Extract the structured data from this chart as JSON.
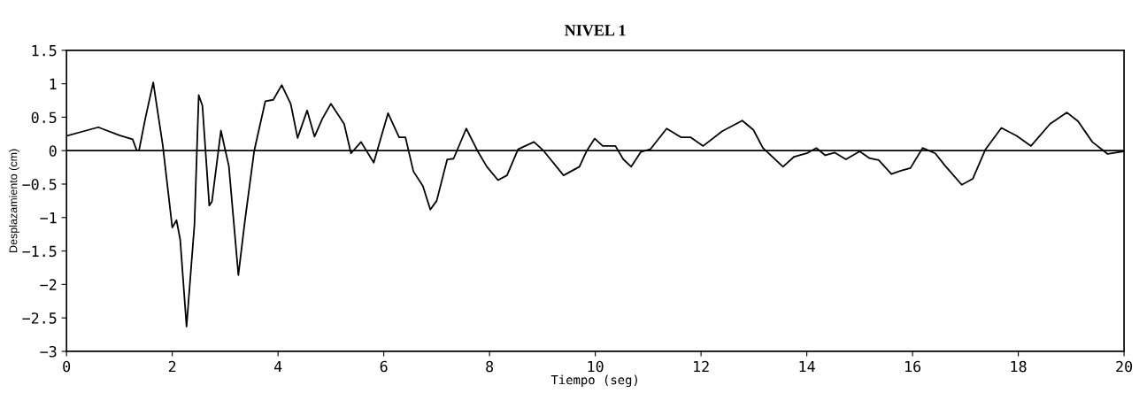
{
  "chart_data": {
    "type": "line",
    "title": "NIVEL 1",
    "xlabel": "Tiempo (seg)",
    "ylabel": "Desplazamiento (cm)",
    "x": [
      0,
      0.6,
      1.0,
      1.25,
      1.33,
      1.37,
      1.49,
      1.64,
      1.82,
      2.0,
      2.08,
      2.15,
      2.27,
      2.42,
      2.5,
      2.57,
      2.7,
      2.75,
      2.92,
      3.07,
      3.25,
      3.37,
      3.55,
      3.76,
      3.91,
      4.07,
      4.24,
      4.37,
      4.55,
      4.69,
      4.84,
      5.0,
      5.16,
      5.25,
      5.38,
      5.57,
      5.81,
      6.08,
      6.29,
      6.41,
      6.56,
      6.74,
      6.88,
      7.0,
      7.2,
      7.32,
      7.56,
      7.77,
      7.95,
      8.16,
      8.33,
      8.54,
      8.84,
      9.02,
      9.4,
      9.7,
      9.84,
      9.99,
      10.14,
      10.38,
      10.53,
      10.68,
      10.86,
      11.04,
      11.35,
      11.62,
      11.8,
      12.04,
      12.4,
      12.78,
      12.99,
      13.17,
      13.55,
      13.76,
      14.0,
      14.18,
      14.35,
      14.53,
      14.74,
      15.0,
      15.18,
      15.36,
      15.6,
      15.78,
      15.96,
      16.19,
      16.43,
      16.61,
      16.93,
      17.14,
      17.38,
      17.68,
      17.97,
      18.24,
      18.6,
      18.92,
      19.13,
      19.4,
      19.69,
      20.0
    ],
    "series": [
      {
        "color": "#000000",
        "values": [
          0.22,
          0.35,
          0.23,
          0.17,
          0.0,
          0.0,
          0.48,
          1.02,
          0.08,
          -1.15,
          -1.04,
          -1.33,
          -2.63,
          -1.1,
          0.83,
          0.67,
          -0.82,
          -0.76,
          0.3,
          -0.23,
          -1.86,
          -1.07,
          0.0,
          0.74,
          0.76,
          0.98,
          0.7,
          0.19,
          0.6,
          0.21,
          0.48,
          0.7,
          0.51,
          0.4,
          -0.04,
          0.13,
          -0.18,
          0.56,
          0.2,
          0.2,
          -0.31,
          -0.53,
          -0.88,
          -0.75,
          -0.13,
          -0.12,
          0.33,
          0.0,
          -0.24,
          -0.44,
          -0.37,
          0.02,
          0.13,
          0.0,
          -0.37,
          -0.24,
          0.0,
          0.18,
          0.07,
          0.07,
          -0.13,
          -0.24,
          -0.02,
          0.02,
          0.33,
          0.2,
          0.2,
          0.07,
          0.29,
          0.45,
          0.31,
          0.04,
          -0.24,
          -0.09,
          -0.04,
          0.04,
          -0.07,
          -0.03,
          -0.13,
          -0.01,
          -0.11,
          -0.14,
          -0.35,
          -0.3,
          -0.26,
          0.04,
          -0.04,
          -0.22,
          -0.51,
          -0.42,
          0.02,
          0.34,
          0.22,
          0.07,
          0.4,
          0.57,
          0.44,
          0.13,
          -0.05,
          -0.01
        ]
      }
    ],
    "xlim": [
      0,
      20
    ],
    "xticks": [
      0,
      2,
      4,
      6,
      8,
      10,
      12,
      14,
      16,
      18,
      20
    ],
    "ylim": [
      -3,
      1.5
    ],
    "yticks": [
      {
        "value": -3,
        "label": "−3"
      },
      {
        "value": -2.5,
        "label": "−2.5"
      },
      {
        "value": -2,
        "label": "−2"
      },
      {
        "value": -1.5,
        "label": "−1.5"
      },
      {
        "value": -1,
        "label": "−1"
      },
      {
        "value": -0.5,
        "label": "−0.5"
      },
      0,
      0.5,
      1,
      1.5
    ],
    "ref_lines": [
      {
        "axis": "y",
        "value": 0,
        "color": "#000000"
      }
    ],
    "grid": false,
    "marker": "none",
    "line_style": "solid"
  }
}
